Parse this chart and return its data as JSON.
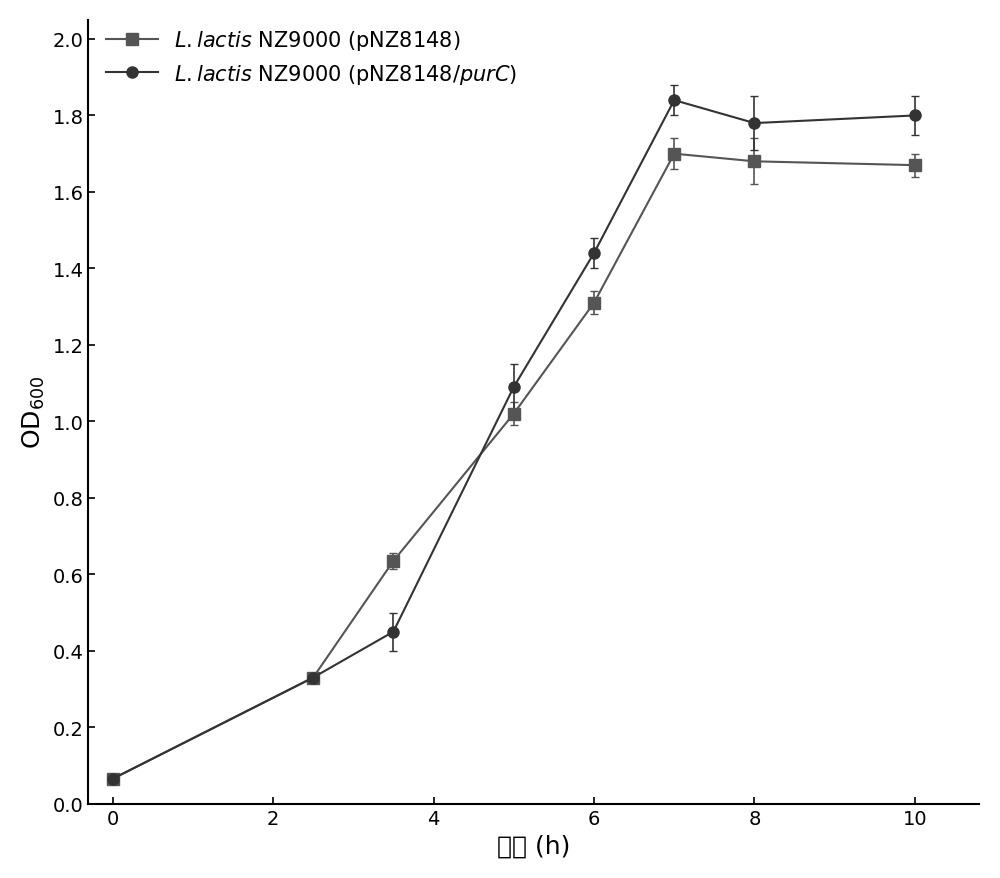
{
  "series1": {
    "x": [
      0,
      2.5,
      3.5,
      5,
      6,
      7,
      8,
      10
    ],
    "y": [
      0.065,
      0.33,
      0.635,
      1.02,
      1.31,
      1.7,
      1.68,
      1.67
    ],
    "yerr": [
      0.008,
      0.008,
      0.02,
      0.03,
      0.03,
      0.04,
      0.06,
      0.03
    ],
    "marker": "s",
    "color": "#555555",
    "markersize": 8,
    "linewidth": 1.5
  },
  "series2": {
    "x": [
      0,
      2.5,
      3.5,
      5,
      6,
      7,
      8,
      10
    ],
    "y": [
      0.065,
      0.33,
      0.45,
      1.09,
      1.44,
      1.84,
      1.78,
      1.8
    ],
    "yerr": [
      0.008,
      0.008,
      0.05,
      0.06,
      0.04,
      0.04,
      0.07,
      0.05
    ],
    "marker": "o",
    "color": "#333333",
    "markersize": 8,
    "linewidth": 1.5
  },
  "xlabel": "时间 (h)",
  "ylabel": "OD$_{600}$",
  "xlim": [
    -0.3,
    10.8
  ],
  "ylim": [
    0.0,
    2.05
  ],
  "xticks": [
    0,
    2,
    4,
    6,
    8,
    10
  ],
  "yticks": [
    0.0,
    0.2,
    0.4,
    0.6,
    0.8,
    1.0,
    1.2,
    1.4,
    1.6,
    1.8,
    2.0
  ],
  "background_color": "#ffffff",
  "legend1_italic": "$\\it{L. lactis}$",
  "legend1_roman": " NZ9000 (pNZ8148)",
  "legend2_italic": "$\\it{L. lactis}$",
  "legend2_roman": " NZ9000 (pNZ8148/",
  "legend2_italic2": "$\\it{purC}$",
  "legend2_end": ")",
  "fontsize_tick": 14,
  "fontsize_label": 18,
  "fontsize_legend": 15
}
